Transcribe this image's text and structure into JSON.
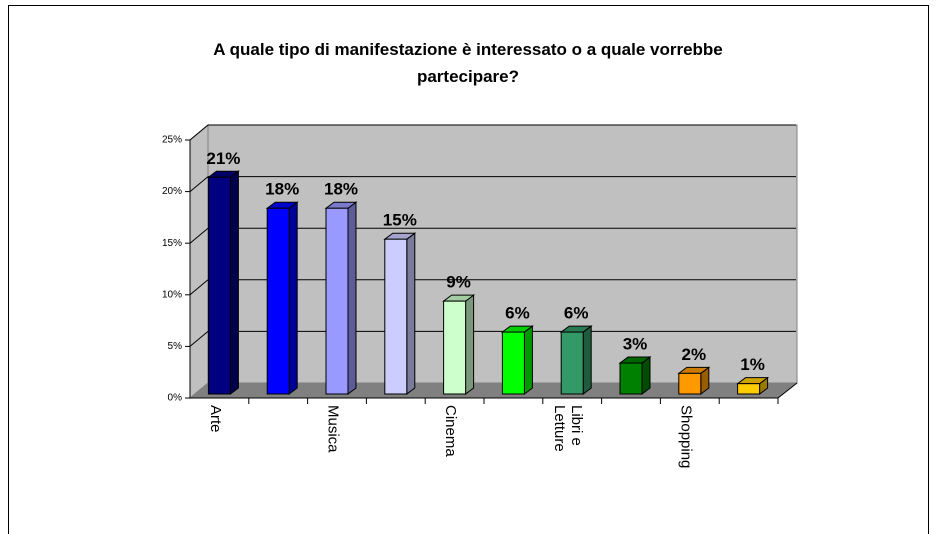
{
  "chart_data": {
    "type": "bar3d",
    "title": "A quale tipo di manifestazione è interessato o a quale vorrebbe partecipare?",
    "categories": [
      "Arte",
      null,
      "Musica",
      null,
      "Cinema",
      null,
      "Libri e Letture",
      null,
      "Shopping",
      null
    ],
    "values": [
      21,
      18,
      18,
      15,
      9,
      6,
      6,
      3,
      2,
      1
    ],
    "value_labels": [
      "21%",
      "18%",
      "18%",
      "15%",
      "9%",
      "6%",
      "6%",
      "3%",
      "2%",
      "1%"
    ],
    "colors": [
      "#000080",
      "#0000ff",
      "#9999ff",
      "#ccccff",
      "#ccffcc",
      "#00ff00",
      "#339966",
      "#008000",
      "#ff9900",
      "#ffcc00"
    ],
    "ylim": [
      0,
      25
    ],
    "yticks": [
      {
        "value": 0,
        "label": "0%"
      },
      {
        "value": 5,
        "label": "5%"
      },
      {
        "value": 10,
        "label": "10%"
      },
      {
        "value": 15,
        "label": "15%"
      },
      {
        "value": 20,
        "label": "20%"
      },
      {
        "value": 25,
        "label": "25%"
      }
    ],
    "grid": true
  }
}
